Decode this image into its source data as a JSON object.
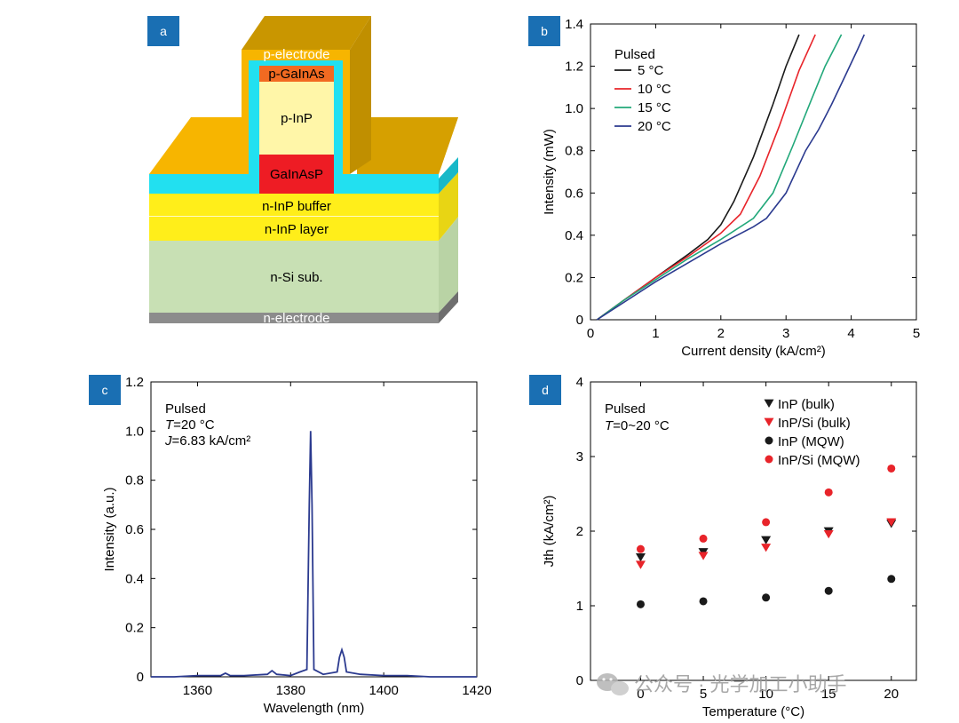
{
  "panels": {
    "a": {
      "badge": "a",
      "layers": {
        "p_electrode": "p-electrode",
        "p_gainas": "p-GaInAs",
        "p_inp": "p-InP",
        "gainasp": "GaInAsP",
        "n_inp_buffer": "n-InP buffer",
        "n_inp_layer": "n-InP layer",
        "n_si_sub": "n-Si sub.",
        "n_electrode": "n-electrode"
      }
    },
    "b": {
      "badge": "b"
    },
    "c": {
      "badge": "c"
    },
    "d": {
      "badge": "d"
    }
  },
  "colors": {
    "badge": "#1a6fb3",
    "black": "#1a1a1a",
    "red": "#e8242a",
    "green": "#22a87a",
    "navy": "#2b3a8f",
    "gold": "#f7b500",
    "gold_dark": "#c99600",
    "cyan": "#22e0f0",
    "yellow": "#ffee1a",
    "light_yellow": "#fff6a8",
    "orange": "#f26a21",
    "red_layer": "#ee1c24",
    "green_sub": "#c8e0b4",
    "gray": "#8c8c8c"
  },
  "watermark": "公众号 · 光学加工小助手",
  "chart_data": [
    {
      "panel": "b",
      "type": "line",
      "xlabel": "Current density (kA/cm²)",
      "ylabel": "Intensity (mW)",
      "xlim": [
        0,
        5
      ],
      "ylim": [
        0,
        1.4
      ],
      "xticks": [
        0,
        1,
        2,
        3,
        4,
        5
      ],
      "yticks": [
        0,
        0.2,
        0.4,
        0.6,
        0.8,
        1.0,
        1.2,
        1.4
      ],
      "ytick_labels": [
        "0",
        "0.2",
        "0.4",
        "0.6",
        "0.8",
        "1.0",
        "1.2",
        "1.4"
      ],
      "legend_title": "Pulsed",
      "series": [
        {
          "name": "5 °C",
          "color": "#1a1a1a",
          "x": [
            0.1,
            0.5,
            1.0,
            1.5,
            1.8,
            2.0,
            2.2,
            2.5,
            2.8,
            3.0,
            3.2
          ],
          "y": [
            0,
            0.09,
            0.2,
            0.31,
            0.38,
            0.45,
            0.56,
            0.77,
            1.02,
            1.2,
            1.35
          ]
        },
        {
          "name": "10 °C",
          "color": "#e8242a",
          "x": [
            0.1,
            0.5,
            1.0,
            1.5,
            2.0,
            2.3,
            2.6,
            2.9,
            3.2,
            3.45
          ],
          "y": [
            0,
            0.09,
            0.2,
            0.3,
            0.41,
            0.5,
            0.68,
            0.92,
            1.18,
            1.35
          ]
        },
        {
          "name": "15 °C",
          "color": "#22a87a",
          "x": [
            0.1,
            0.5,
            1.0,
            1.5,
            2.0,
            2.5,
            2.8,
            3.1,
            3.4,
            3.6,
            3.85
          ],
          "y": [
            0,
            0.09,
            0.19,
            0.29,
            0.38,
            0.48,
            0.6,
            0.82,
            1.05,
            1.2,
            1.35
          ]
        },
        {
          "name": "20 °C",
          "color": "#2b3a8f",
          "x": [
            0.1,
            0.5,
            1.0,
            1.5,
            2.0,
            2.5,
            2.7,
            3.0,
            3.3,
            3.5,
            3.55,
            3.7,
            3.9,
            4.1,
            4.2
          ],
          "y": [
            0,
            0.08,
            0.18,
            0.27,
            0.36,
            0.44,
            0.48,
            0.6,
            0.8,
            0.9,
            0.93,
            1.02,
            1.15,
            1.28,
            1.35
          ]
        }
      ]
    },
    {
      "panel": "c",
      "type": "line",
      "xlabel": "Wavelength (nm)",
      "ylabel": "Intensity (a.u.)",
      "xlim": [
        1350,
        1420
      ],
      "ylim": [
        0,
        1.2
      ],
      "xticks": [
        1360,
        1380,
        1400,
        1420
      ],
      "yticks": [
        0,
        0.2,
        0.4,
        0.6,
        0.8,
        1.0,
        1.2
      ],
      "ytick_labels": [
        "0",
        "0.2",
        "0.4",
        "0.6",
        "0.8",
        "1.0",
        "1.2"
      ],
      "annotation": {
        "line1": "Pulsed",
        "line2_sym": "T",
        "line2_val": "=20 °C",
        "line3_sym": "J",
        "line3_val": "=6.83 kA/cm²"
      },
      "series": [
        {
          "color": "#2b3a8f",
          "x": [
            1350,
            1355,
            1360,
            1365,
            1366,
            1367,
            1370,
            1375,
            1376,
            1377,
            1380,
            1382,
            1383.5,
            1384.0,
            1384.3,
            1384.6,
            1385,
            1387,
            1390,
            1390.5,
            1391,
            1391.5,
            1392,
            1395,
            1400,
            1405,
            1410,
            1415,
            1420
          ],
          "y": [
            0,
            0,
            0.005,
            0.005,
            0.015,
            0.005,
            0.005,
            0.01,
            0.025,
            0.01,
            0.005,
            0.02,
            0.03,
            0.7,
            1.0,
            0.7,
            0.03,
            0.01,
            0.02,
            0.08,
            0.11,
            0.08,
            0.02,
            0.01,
            0.005,
            0.005,
            0,
            0,
            0
          ]
        }
      ]
    },
    {
      "panel": "d",
      "type": "scatter",
      "xlabel": "Temperature (°C)",
      "ylabel": "Jth (kA/cm²)",
      "xlim": [
        -4,
        22
      ],
      "ylim": [
        0,
        4
      ],
      "xticks": [
        0,
        5,
        10,
        15,
        20
      ],
      "yticks": [
        0,
        1,
        2,
        3,
        4
      ],
      "legend_title": "Pulsed",
      "legend_sub_sym": "T",
      "legend_sub_val": "=0~20 °C",
      "series": [
        {
          "name": "InP (bulk)",
          "marker": "triangle-down",
          "color": "#1a1a1a",
          "x": [
            0,
            5,
            10,
            15,
            20
          ],
          "y": [
            1.65,
            1.72,
            1.88,
            2.0,
            2.1
          ]
        },
        {
          "name": "InP/Si (bulk)",
          "marker": "triangle-down",
          "color": "#e8242a",
          "x": [
            0,
            5,
            10,
            15,
            20
          ],
          "y": [
            1.55,
            1.67,
            1.78,
            1.96,
            2.12
          ]
        },
        {
          "name": "InP (MQW)",
          "marker": "circle",
          "color": "#1a1a1a",
          "x": [
            0,
            5,
            10,
            15,
            20
          ],
          "y": [
            1.02,
            1.06,
            1.11,
            1.2,
            1.36
          ]
        },
        {
          "name": "InP/Si (MQW)",
          "marker": "circle",
          "color": "#e8242a",
          "x": [
            0,
            5,
            10,
            15,
            20
          ],
          "y": [
            1.76,
            1.9,
            2.12,
            2.52,
            2.84
          ]
        }
      ]
    }
  ]
}
